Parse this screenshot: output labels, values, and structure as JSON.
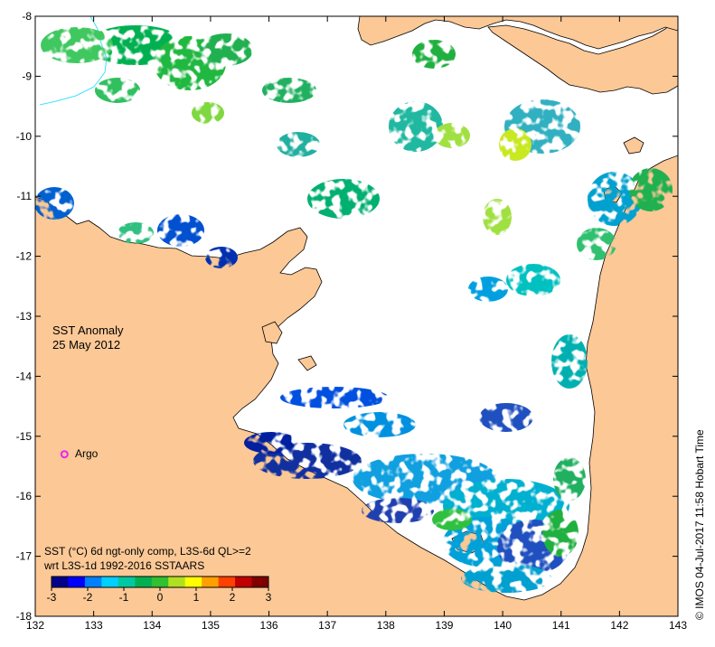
{
  "map": {
    "title_line1": "SST Anomaly",
    "title_line2": "25 May 2012",
    "extent": {
      "lon": [
        132,
        143
      ],
      "lat": [
        -18,
        -8
      ]
    },
    "lon_ticks": [
      "132",
      "133",
      "134",
      "135",
      "136",
      "137",
      "138",
      "139",
      "140",
      "141",
      "142",
      "143"
    ],
    "lat_ticks": [
      "-8",
      "-9",
      "-10",
      "-11",
      "-12",
      "-13",
      "-14",
      "-15",
      "-16",
      "-17",
      "-18"
    ],
    "land_color": "#fbc896",
    "ocean_color": "#ffffff"
  },
  "legend": {
    "argo_label": "Argo",
    "argo_position": {
      "lon": 132.5,
      "lat": -15.3
    },
    "argo_color": "#ee22ee"
  },
  "colorbar": {
    "line1": "SST (°C) 6d ngt-only comp, L3S-6d QL>=2",
    "line2": "wrt L3S-1d 1992-2016 SSTAARS",
    "ticks": [
      "-3",
      "-2",
      "-1",
      "0",
      "1",
      "2",
      "3"
    ],
    "range": [
      -3,
      3
    ],
    "colors": [
      "#00008b",
      "#0000ff",
      "#0080ff",
      "#00d0ff",
      "#00c8a0",
      "#00b050",
      "#30c030",
      "#b0e020",
      "#ffff00",
      "#ffa000",
      "#ff4000",
      "#c00000",
      "#800000"
    ]
  },
  "credit": "©  IMOS 04-Jul-2017 11:58 Hobart Time"
}
